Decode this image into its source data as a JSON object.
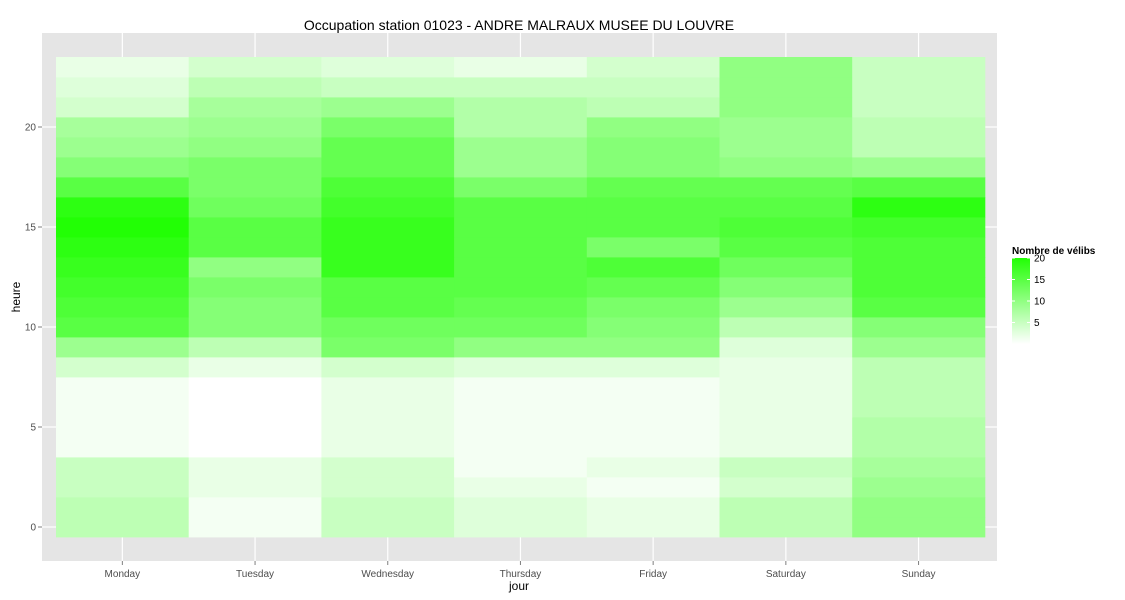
{
  "chart_data": {
    "type": "heatmap",
    "title": "Occupation station 01023 - ANDRE MALRAUX MUSEE DU LOUVRE",
    "xlabel": "jour",
    "ylabel": "heure",
    "categories": [
      "Monday",
      "Tuesday",
      "Wednesday",
      "Thursday",
      "Friday",
      "Saturday",
      "Sunday"
    ],
    "hours": [
      0,
      1,
      2,
      3,
      4,
      5,
      6,
      7,
      8,
      9,
      10,
      11,
      12,
      13,
      14,
      15,
      16,
      17,
      18,
      19,
      20,
      21,
      22,
      23
    ],
    "y_ticks": [
      0,
      5,
      10,
      15,
      20
    ],
    "ylim": [
      -0.5,
      23.5
    ],
    "values": [
      [
        6,
        1,
        5,
        3,
        2,
        6,
        10
      ],
      [
        6,
        1,
        5,
        3,
        2,
        6,
        10
      ],
      [
        5,
        2,
        4,
        2,
        1,
        4,
        9
      ],
      [
        5,
        2,
        4,
        1,
        2,
        5,
        8
      ],
      [
        1,
        0,
        2,
        1,
        1,
        2,
        7
      ],
      [
        1,
        0,
        2,
        1,
        1,
        2,
        7
      ],
      [
        1,
        0,
        2,
        1,
        1,
        2,
        6
      ],
      [
        1,
        0,
        2,
        1,
        1,
        2,
        6
      ],
      [
        4,
        2,
        4,
        3,
        3,
        2,
        6
      ],
      [
        9,
        6,
        12,
        10,
        10,
        3,
        9
      ],
      [
        15,
        11,
        13,
        13,
        11,
        6,
        11
      ],
      [
        16,
        11,
        15,
        14,
        12,
        9,
        15
      ],
      [
        17,
        12,
        15,
        15,
        14,
        11,
        16
      ],
      [
        18,
        10,
        18,
        15,
        16,
        13,
        16
      ],
      [
        19,
        15,
        18,
        15,
        12,
        15,
        16
      ],
      [
        20,
        15,
        18,
        15,
        15,
        16,
        17
      ],
      [
        19,
        13,
        17,
        15,
        15,
        15,
        19
      ],
      [
        15,
        12,
        16,
        12,
        14,
        14,
        15
      ],
      [
        11,
        12,
        14,
        9,
        11,
        10,
        9
      ],
      [
        9,
        10,
        14,
        9,
        11,
        9,
        6
      ],
      [
        8,
        9,
        12,
        7,
        10,
        9,
        6
      ],
      [
        4,
        8,
        9,
        7,
        6,
        10,
        5
      ],
      [
        3,
        6,
        5,
        5,
        5,
        10,
        5
      ],
      [
        2,
        4,
        3,
        2,
        4,
        10,
        5
      ]
    ],
    "grid": true,
    "legend": {
      "title": "Nombre de vélibs",
      "ticks": [
        5,
        10,
        15,
        20
      ],
      "range": [
        0,
        20
      ],
      "placement": "right",
      "low_color": "#ffffff",
      "high_color": "#22ff05"
    },
    "colors": {
      "panel_background": "#e5e5e5",
      "grid_line": "#ffffff"
    }
  }
}
